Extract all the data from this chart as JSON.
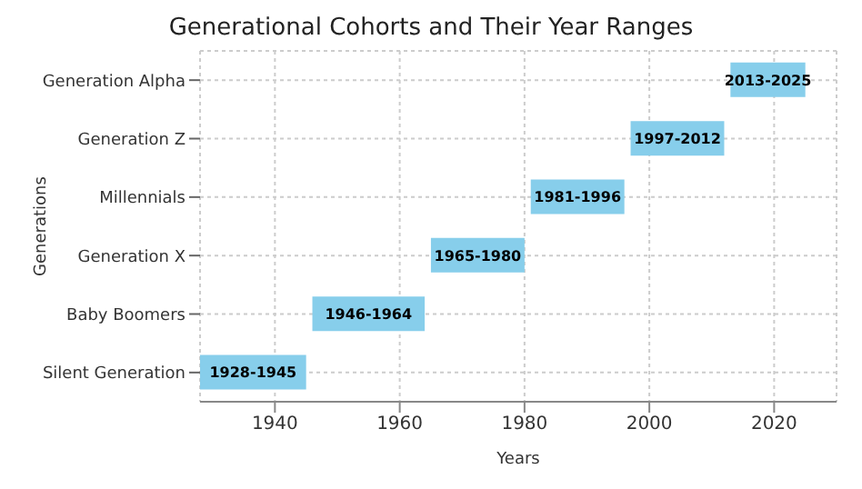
{
  "chart_data": {
    "type": "bar",
    "orientation": "horizontal",
    "title": "Generational Cohorts and Their Year Ranges",
    "xlabel": "Years",
    "ylabel": "Generations",
    "categories": [
      "Generation Alpha",
      "Generation Z",
      "Millennials",
      "Generation X",
      "Baby Boomers",
      "Silent Generation"
    ],
    "base": [
      2013,
      1997,
      1981,
      1965,
      1946,
      1928
    ],
    "values": [
      12,
      15,
      15,
      15,
      18,
      17
    ],
    "value_labels": [
      "2013-2025",
      "1997-2012",
      "1981-1996",
      "1965-1980",
      "1946-1964",
      "1928-1945"
    ],
    "color": "#87ceeb",
    "xlim": [
      1928,
      2030
    ],
    "xticks": [
      1940,
      1960,
      1980,
      2000,
      2020
    ],
    "grid": true
  }
}
